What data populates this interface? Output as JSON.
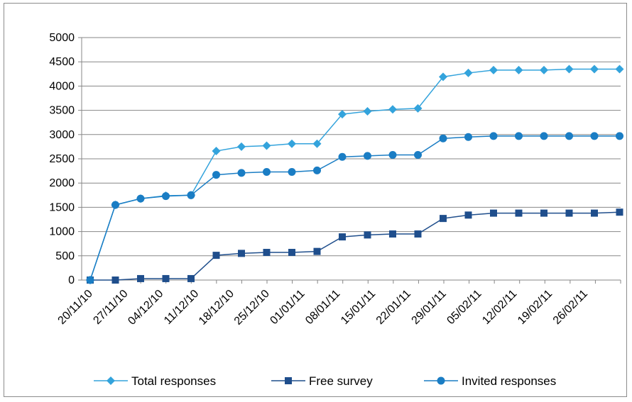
{
  "chart_data": {
    "type": "line",
    "title": "",
    "xlabel": "",
    "ylabel": "",
    "ylim": [
      0,
      5000
    ],
    "yticks": [
      0,
      500,
      1000,
      1500,
      2000,
      2500,
      3000,
      3500,
      4000,
      4500,
      5000
    ],
    "grid": "horizontal major gridlines",
    "legend_position": "bottom",
    "x_tick_labels": [
      "20/11/10",
      "27/11/10",
      "04/12/10",
      "11/12/10",
      "18/12/10",
      "25/12/10",
      "01/01/11",
      "08/01/11",
      "15/01/11",
      "22/01/11",
      "29/01/11",
      "05/02/11",
      "12/02/11",
      "19/02/11",
      "26/02/11"
    ],
    "series": [
      {
        "name": "Total responses",
        "color": "#33a3dc",
        "marker": "diamond",
        "values": [
          0,
          1550,
          1680,
          1740,
          1750,
          2660,
          2750,
          2770,
          2810,
          2810,
          3420,
          3480,
          3520,
          3540,
          4190,
          4270,
          4330,
          4330,
          4330,
          4350,
          4350,
          4350
        ]
      },
      {
        "name": "Free survey",
        "color": "#1f4e8c",
        "marker": "square",
        "values": [
          0,
          0,
          30,
          30,
          30,
          510,
          550,
          570,
          570,
          590,
          890,
          930,
          950,
          950,
          1270,
          1340,
          1380,
          1380,
          1380,
          1380,
          1380,
          1400
        ]
      },
      {
        "name": "Invited responses",
        "color": "#1a7dc4",
        "marker": "circle",
        "values": [
          0,
          1550,
          1680,
          1730,
          1750,
          2170,
          2210,
          2230,
          2230,
          2260,
          2540,
          2560,
          2580,
          2580,
          2920,
          2950,
          2970,
          2970,
          2970,
          2970,
          2970,
          2970
        ]
      }
    ]
  }
}
